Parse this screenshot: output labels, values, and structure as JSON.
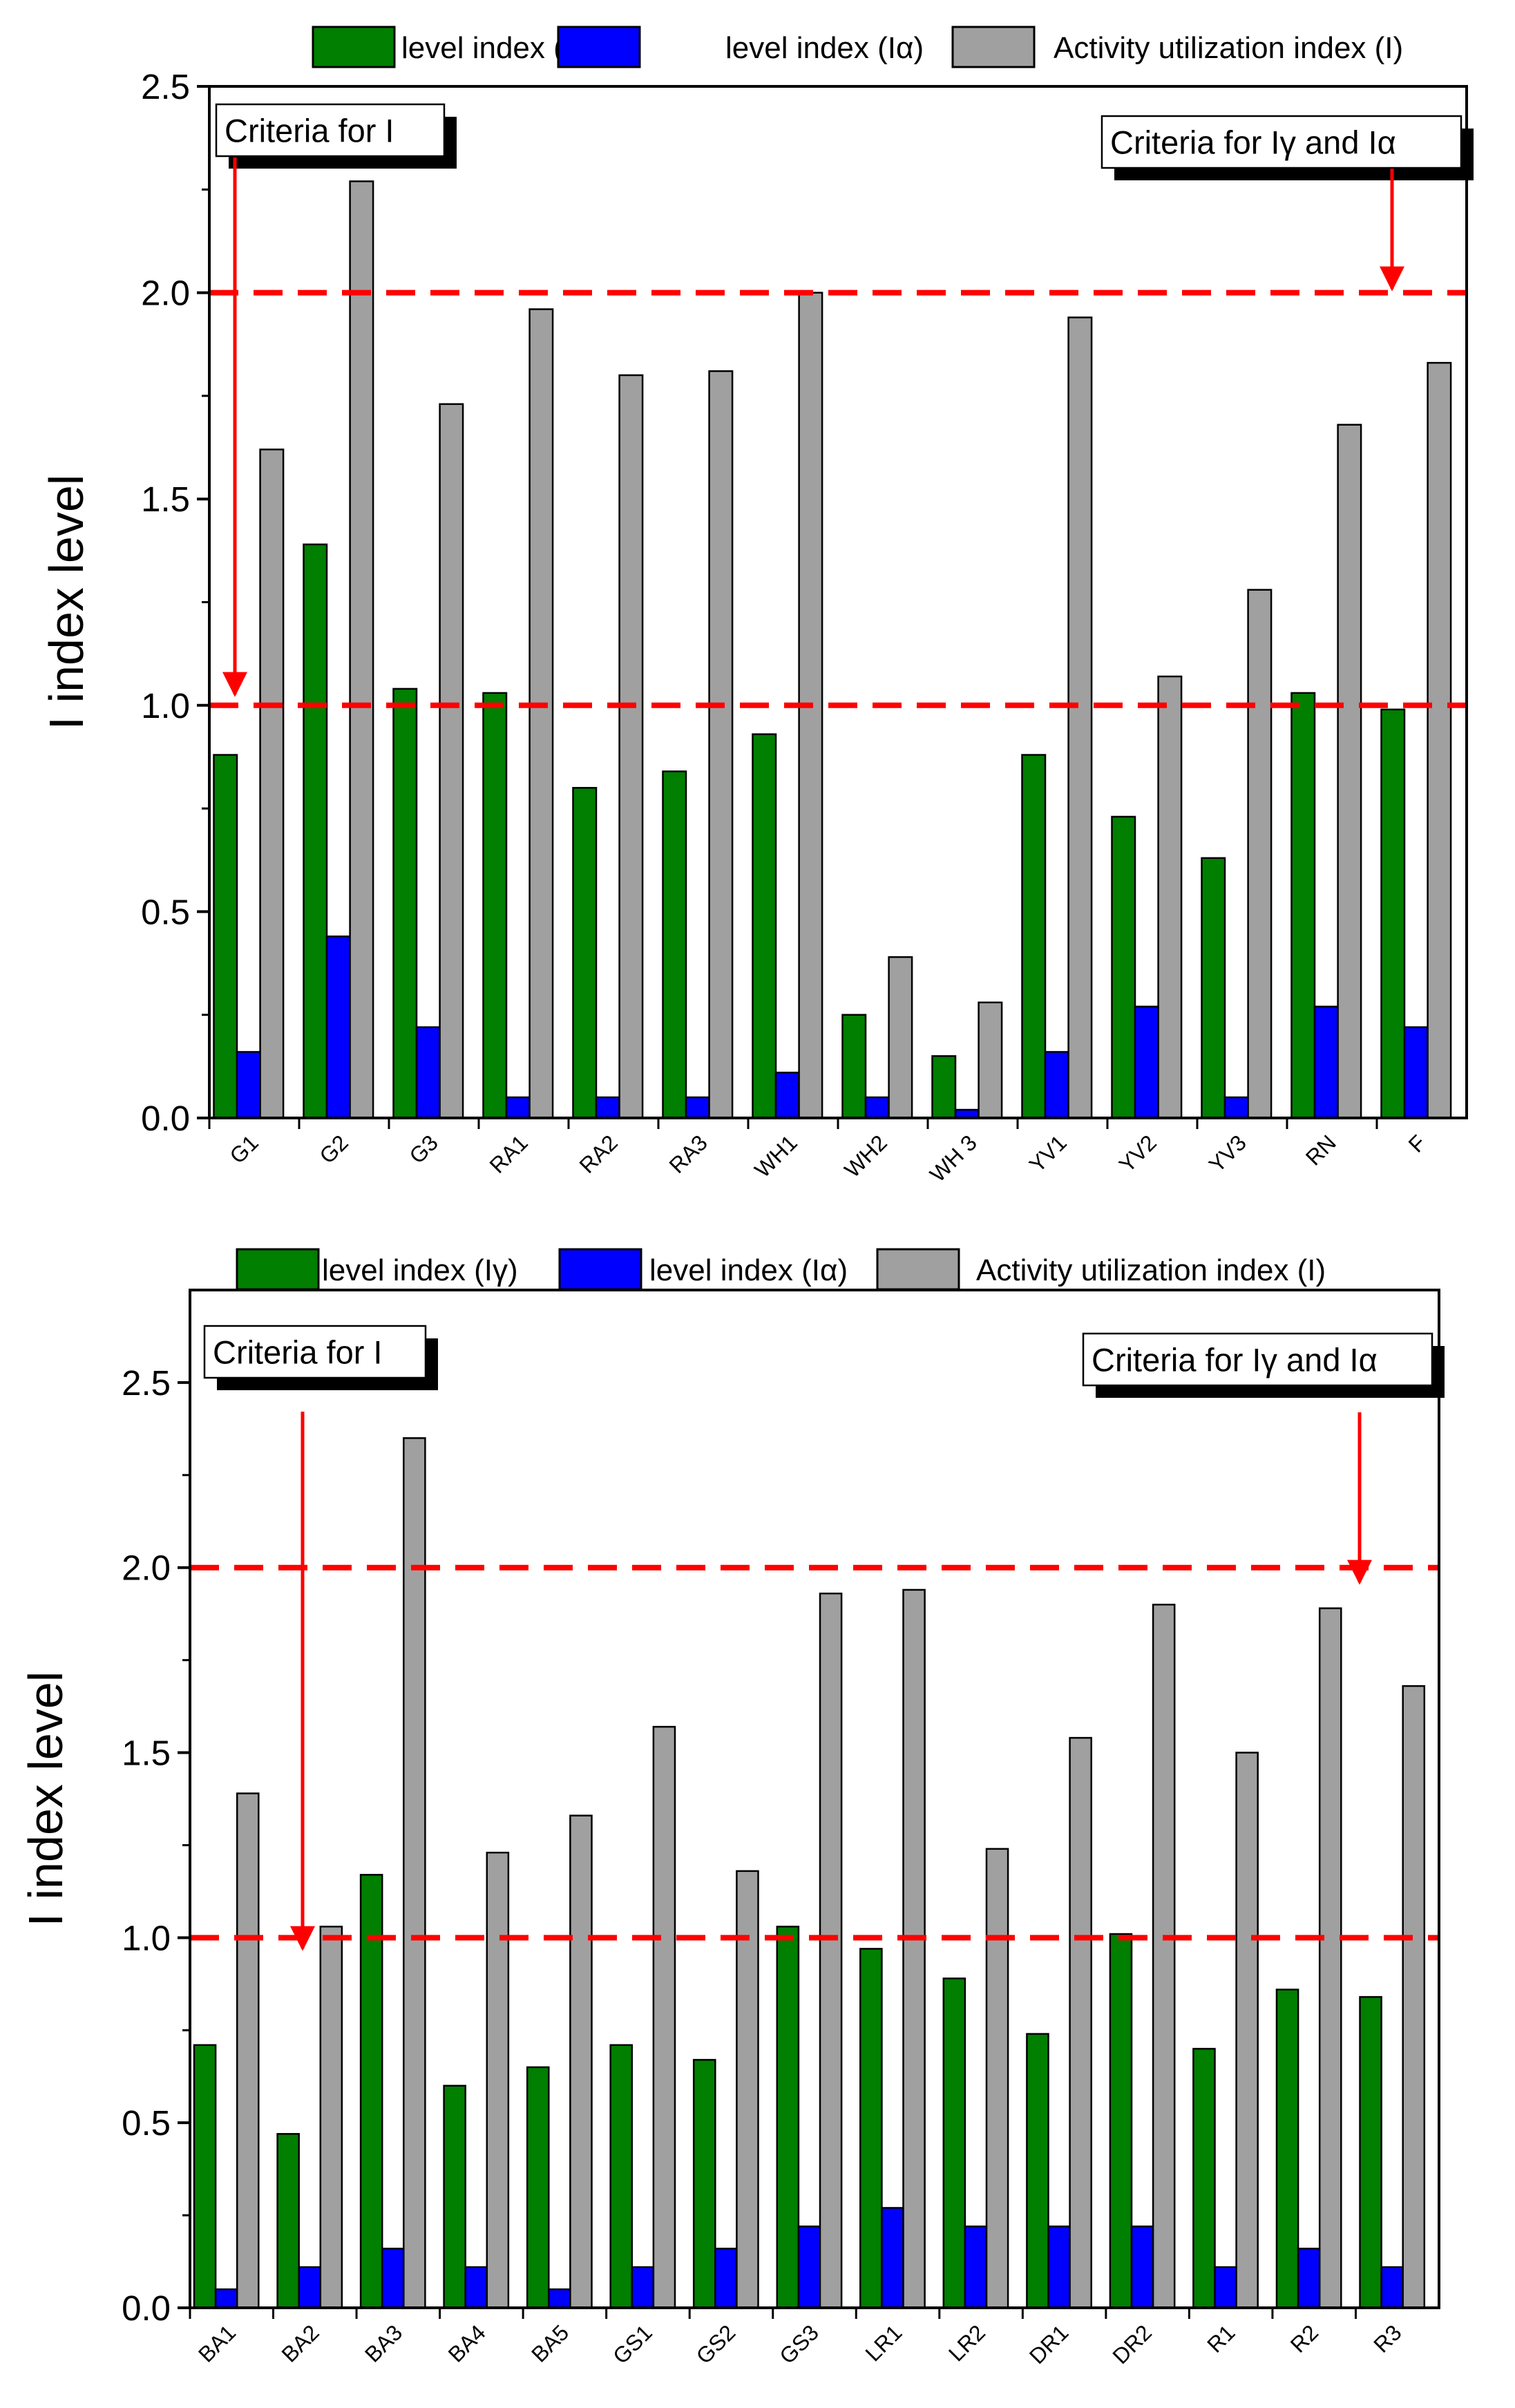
{
  "colors": {
    "series": [
      "#007f00",
      "#0000ff",
      "#a0a0a0"
    ],
    "criteria_line": "#ff0000",
    "arrow": "#ff0000",
    "axis": "#000000"
  },
  "annotations": {
    "criteria_I": "Criteria for I",
    "criteria_gamma_alpha": "Criteria for Iγ and Iα"
  },
  "chart_data": [
    {
      "type": "bar",
      "title": "",
      "xlabel": "",
      "ylabel": "I index level",
      "ylim": [
        0,
        2.5
      ],
      "yticks": [
        "0.0",
        "0.5",
        "1.0",
        "1.5",
        "2.0",
        "2.5"
      ],
      "ytick_values": [
        0,
        0.5,
        1.0,
        1.5,
        2.0,
        2.5
      ],
      "legend_position": "top",
      "criteria_lines": [
        1.0,
        2.0
      ],
      "categories": [
        "G1",
        "G2",
        "G3",
        "RA1",
        "RA2",
        "RA3",
        "WH1",
        "WH2",
        "WH 3",
        "YV1",
        "YV2",
        "YV3",
        "RN",
        "F"
      ],
      "series": [
        {
          "name": "level index (Iγ)",
          "values": [
            0.88,
            1.39,
            1.04,
            1.03,
            0.8,
            0.84,
            0.93,
            0.25,
            0.15,
            0.88,
            0.73,
            0.63,
            1.03,
            0.99
          ]
        },
        {
          "name": "level index (Iα)",
          "values": [
            0.16,
            0.44,
            0.22,
            0.05,
            0.05,
            0.05,
            0.11,
            0.05,
            0.02,
            0.16,
            0.27,
            0.05,
            0.27,
            0.22
          ]
        },
        {
          "name": "Activity utilization index (I)",
          "values": [
            1.62,
            2.27,
            1.73,
            1.96,
            1.8,
            1.81,
            2.0,
            0.39,
            0.28,
            1.94,
            1.07,
            1.28,
            1.68,
            1.83
          ]
        }
      ]
    },
    {
      "type": "bar",
      "title": "",
      "xlabel": "",
      "ylabel": "I index level",
      "ylim": [
        0,
        2.75
      ],
      "yticks": [
        "0.0",
        "0.5",
        "1.0",
        "1.5",
        "2.0",
        "2.5"
      ],
      "ytick_values": [
        0,
        0.5,
        1.0,
        1.5,
        2.0,
        2.5
      ],
      "legend_position": "top",
      "criteria_lines": [
        1.0,
        2.0
      ],
      "categories": [
        "BA1",
        "BA2",
        "BA3",
        "BA4",
        "BA5",
        "GS1",
        "GS2",
        "GS3",
        "LR1",
        "LR2",
        "DR1",
        "DR2",
        "R1",
        "R2",
        "R3"
      ],
      "series": [
        {
          "name": "level index (Iγ)",
          "values": [
            0.71,
            0.47,
            1.17,
            0.6,
            0.65,
            0.71,
            0.67,
            1.03,
            0.97,
            0.89,
            0.74,
            1.01,
            0.7,
            0.86,
            0.84
          ]
        },
        {
          "name": "level index (Iα)",
          "values": [
            0.05,
            0.11,
            0.16,
            0.11,
            0.05,
            0.11,
            0.16,
            0.22,
            0.27,
            0.22,
            0.22,
            0.22,
            0.11,
            0.16,
            0.11
          ]
        },
        {
          "name": "Activity utilization index (I)",
          "values": [
            1.39,
            1.03,
            2.35,
            1.23,
            1.33,
            1.57,
            1.18,
            1.93,
            1.94,
            1.24,
            1.54,
            1.9,
            1.5,
            1.89,
            1.68
          ]
        }
      ]
    }
  ]
}
